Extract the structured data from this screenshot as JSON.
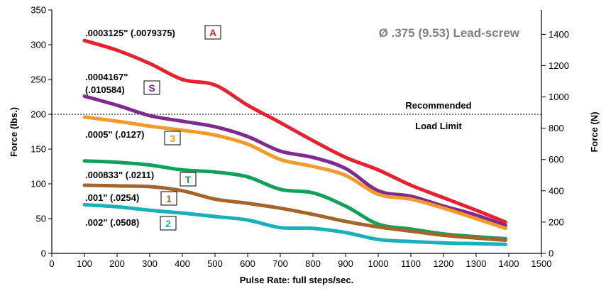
{
  "chart_data": {
    "type": "line",
    "title": "Ø .375 (9.53) Lead-screw",
    "xlabel": "Pulse Rate:  full steps/sec.",
    "ylabel_left": "Force (lbs.)",
    "ylabel_right": "Force (N)",
    "xlim": [
      0,
      1500
    ],
    "ylim_left": [
      0,
      350
    ],
    "ylim_right": [
      0,
      1556
    ],
    "x_ticks": [
      "0",
      "100",
      "200",
      "300",
      "400",
      "500",
      "600",
      "700",
      "800",
      "900",
      "1000",
      "1100",
      "1200",
      "1300",
      "1400",
      "1500"
    ],
    "y_ticks_left": [
      "0",
      "50",
      "100",
      "150",
      "200",
      "250",
      "300",
      "350"
    ],
    "y_ticks_right": [
      "0",
      "200",
      "400",
      "600",
      "800",
      "1000",
      "1200",
      "1400"
    ],
    "grid": false,
    "reference_line": {
      "y": 200,
      "label_top": "Recommended",
      "label_bottom": "Load Limit"
    },
    "series": [
      {
        "id": "A",
        "label": ".0003125\" (.0079375)",
        "tag": "A",
        "color": "#e8212e",
        "x": [
          100,
          200,
          300,
          400,
          500,
          600,
          700,
          800,
          900,
          1000,
          1100,
          1200,
          1300,
          1390
        ],
        "y": [
          306,
          292,
          273,
          250,
          242,
          213,
          188,
          162,
          138,
          120,
          98,
          80,
          62,
          45
        ]
      },
      {
        "id": "S",
        "label": ".0004167\"",
        "label2": "(.010584)",
        "tag": "S",
        "color": "#7f2b8e",
        "x": [
          100,
          200,
          300,
          400,
          500,
          600,
          700,
          800,
          900,
          1000,
          1100,
          1200,
          1300,
          1390
        ],
        "y": [
          226,
          213,
          198,
          190,
          182,
          168,
          147,
          138,
          122,
          90,
          82,
          68,
          55,
          40
        ]
      },
      {
        "id": "3",
        "label": ".0005\" (.0127)",
        "tag": "3",
        "color": "#f39a2e",
        "x": [
          100,
          200,
          300,
          400,
          500,
          600,
          700,
          800,
          900,
          1000,
          1100,
          1200,
          1300,
          1390
        ],
        "y": [
          196,
          190,
          183,
          177,
          170,
          157,
          135,
          125,
          112,
          85,
          78,
          65,
          50,
          36
        ]
      },
      {
        "id": "T",
        "label": ".000833\" (.0211)",
        "tag": "T",
        "color": "#11a05a",
        "x": [
          100,
          200,
          300,
          400,
          500,
          600,
          700,
          800,
          900,
          1000,
          1100,
          1200,
          1300,
          1390
        ],
        "y": [
          133,
          131,
          127,
          120,
          117,
          110,
          92,
          87,
          68,
          42,
          35,
          28,
          24,
          21
        ]
      },
      {
        "id": "1",
        "label": ".001\" (.0254)",
        "tag": "1",
        "color": "#a5652a",
        "x": [
          100,
          200,
          300,
          400,
          500,
          600,
          700,
          800,
          900,
          1000,
          1100,
          1200,
          1300,
          1390
        ],
        "y": [
          98,
          97,
          96,
          90,
          78,
          72,
          65,
          56,
          46,
          38,
          32,
          26,
          22,
          19
        ]
      },
      {
        "id": "2",
        "label": ".002\" (.0508)",
        "tag": "2",
        "color": "#1ab0bb",
        "x": [
          100,
          200,
          300,
          400,
          500,
          600,
          700,
          800,
          900,
          1000,
          1100,
          1200,
          1300,
          1390
        ],
        "y": [
          70,
          67,
          62,
          58,
          53,
          48,
          37,
          36,
          30,
          20,
          17,
          15,
          14,
          13
        ]
      }
    ]
  }
}
